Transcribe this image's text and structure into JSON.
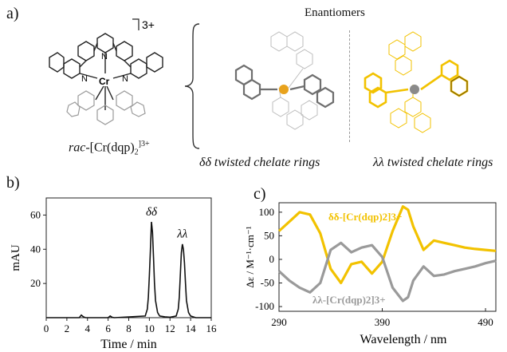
{
  "panel_a": {
    "label": "a)",
    "charge": "3+",
    "metal_label": "Cr",
    "n_label": "N",
    "compound_prefix": "rac",
    "compound_rest": "-[Cr(dqp)",
    "compound_sub": "2",
    "compound_sup": "]3+",
    "enantiomers_title": "Enantiomers",
    "left_caption": "δδ twisted chelate rings",
    "right_caption": "λλ twisted chelate rings",
    "colors": {
      "left_model": "#7a7a7a",
      "right_model": "#f2c200",
      "metal": "#e8a21c"
    }
  },
  "panel_b": {
    "label": "b)",
    "chart_data": {
      "type": "line",
      "xlabel": "Time / min",
      "ylabel": "mAU",
      "xlim": [
        0,
        16
      ],
      "ylim": [
        0,
        70
      ],
      "xticks": [
        0,
        2,
        4,
        6,
        8,
        10,
        12,
        14,
        16
      ],
      "yticks": [
        20,
        40,
        60
      ],
      "peak_labels": [
        {
          "text": "δδ",
          "x": 10.2,
          "y": 57
        },
        {
          "text": "λλ",
          "x": 13.2,
          "y": 44
        }
      ],
      "series": [
        {
          "x": [
            0,
            3.2,
            3.4,
            3.6,
            3.8,
            6.0,
            6.2,
            6.4,
            6.6,
            9.6,
            9.8,
            9.9,
            10.0,
            10.1,
            10.2,
            10.3,
            10.4,
            10.5,
            10.6,
            10.8,
            11.0,
            11.5,
            12.0,
            12.6,
            12.8,
            12.9,
            13.0,
            13.1,
            13.2,
            13.3,
            13.4,
            13.5,
            13.6,
            13.8,
            14.0,
            14.5,
            16.0
          ],
          "y": [
            0,
            0,
            1.5,
            0.5,
            0,
            0,
            1.0,
            0.2,
            0,
            1,
            5,
            12,
            25,
            40,
            56,
            50,
            35,
            20,
            10,
            3,
            1,
            0.5,
            0.3,
            1,
            5,
            12,
            25,
            38,
            43,
            40,
            32,
            20,
            10,
            3,
            1,
            0,
            0
          ]
        }
      ]
    }
  },
  "panel_c": {
    "label": "c)",
    "chart_data": {
      "type": "line",
      "xlabel": "Wavelength / nm",
      "ylabel": "Δε / M⁻¹·cm⁻¹",
      "xlim": [
        290,
        500
      ],
      "ylim": [
        -110,
        120
      ],
      "xticks": [
        290,
        390,
        490
      ],
      "yticks": [
        -100,
        -50,
        0,
        50,
        100
      ],
      "series": [
        {
          "name": "δδ-[Cr(dqp)2]3+",
          "color": "#f2c200",
          "x": [
            290,
            300,
            310,
            320,
            330,
            340,
            350,
            360,
            370,
            380,
            390,
            400,
            410,
            415,
            420,
            430,
            440,
            450,
            460,
            470,
            480,
            490,
            500
          ],
          "y": [
            60,
            80,
            100,
            95,
            55,
            -20,
            -50,
            -10,
            -5,
            -30,
            -5,
            60,
            112,
            105,
            70,
            20,
            40,
            35,
            30,
            25,
            22,
            20,
            18
          ]
        },
        {
          "name": "λλ-[Cr(dqp)2]3+",
          "color": "#9a9a9a",
          "x": [
            290,
            300,
            310,
            320,
            330,
            340,
            350,
            360,
            370,
            380,
            390,
            400,
            410,
            415,
            420,
            430,
            440,
            450,
            460,
            470,
            480,
            490,
            500
          ],
          "y": [
            -25,
            -45,
            -60,
            -70,
            -50,
            20,
            35,
            15,
            25,
            30,
            5,
            -60,
            -88,
            -80,
            -45,
            -15,
            -35,
            -32,
            -25,
            -20,
            -15,
            -8,
            -3
          ]
        }
      ]
    }
  }
}
